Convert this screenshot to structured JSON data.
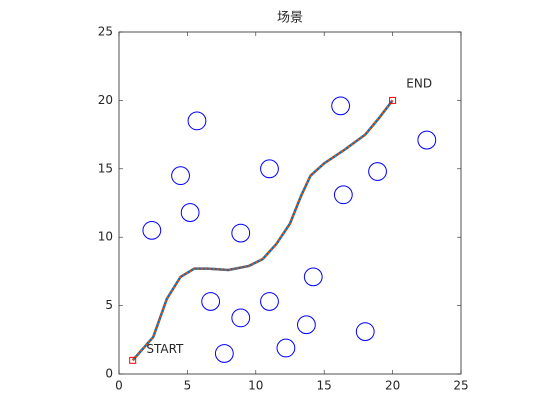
{
  "chart_data": {
    "type": "scene",
    "title": "场景",
    "xlim": [
      0,
      25
    ],
    "ylim": [
      0,
      25
    ],
    "xticks": [
      0,
      5,
      10,
      15,
      20,
      25
    ],
    "yticks": [
      0,
      5,
      10,
      15,
      20,
      25
    ],
    "obstacles": {
      "color": "#0000ff",
      "radius": 0.65,
      "x": [
        2.4,
        4.5,
        5.7,
        5.2,
        8.9,
        11.0,
        16.2,
        16.4,
        18.9,
        22.5,
        14.2,
        6.7,
        11.0,
        8.9,
        13.7,
        7.7,
        12.2,
        18.0
      ],
      "y": [
        10.5,
        14.5,
        18.5,
        11.8,
        10.3,
        15.0,
        19.6,
        13.1,
        14.8,
        17.1,
        7.1,
        5.3,
        5.3,
        4.1,
        3.6,
        1.5,
        1.9,
        3.1
      ]
    },
    "path": {
      "colors": [
        "#0072bd",
        "#d95319"
      ],
      "x": [
        1,
        2.5,
        3.5,
        4.5,
        5.5,
        6.5,
        8,
        9.5,
        10.5,
        11.5,
        12.5,
        13.3,
        14,
        15,
        16.5,
        18,
        19,
        20
      ],
      "y": [
        1,
        2.7,
        5.5,
        7.1,
        7.7,
        7.7,
        7.6,
        7.9,
        8.4,
        9.5,
        11,
        13,
        14.5,
        15.4,
        16.4,
        17.5,
        18.7,
        20
      ]
    },
    "points": {
      "color": "#ff0000",
      "x": [
        1,
        20
      ],
      "y": [
        1,
        20
      ]
    },
    "annotations": [
      {
        "text": "START",
        "x": 2,
        "y": 1.8
      },
      {
        "text": "END",
        "x": 21,
        "y": 21.2
      }
    ]
  }
}
